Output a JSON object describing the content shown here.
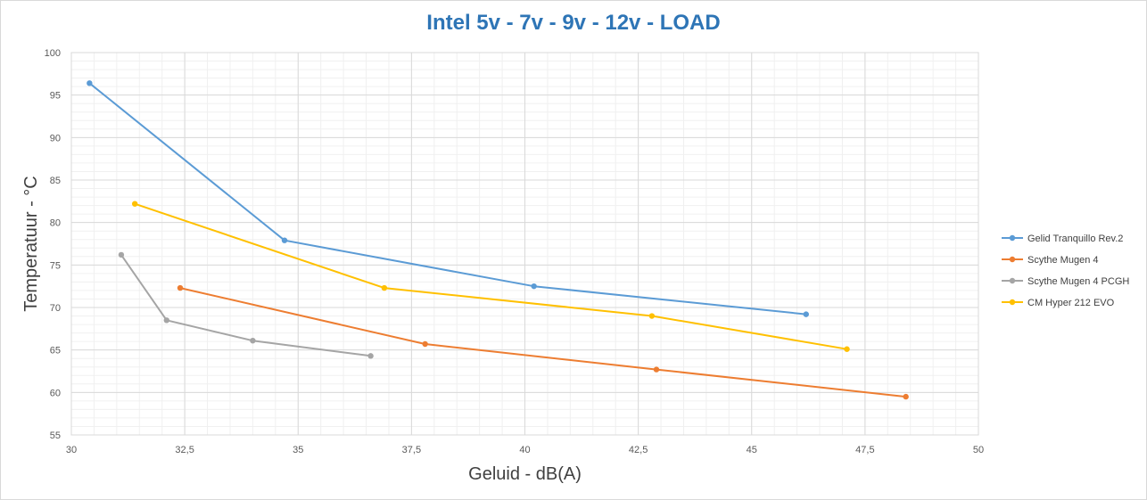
{
  "chart_data": {
    "type": "scatter",
    "title": "Intel 5v - 7v - 9v - 12v - LOAD",
    "xlabel": "Geluid - dB(A)",
    "ylabel": "Temperatuur - °C",
    "xlim": [
      30,
      50
    ],
    "ylim": [
      55,
      100
    ],
    "x_major_step": 2.5,
    "y_major_step": 5,
    "x_tick_labels": [
      "30",
      "32,5",
      "35",
      "37,5",
      "40",
      "42,5",
      "45",
      "47,5",
      "50"
    ],
    "y_tick_labels": [
      "55",
      "60",
      "65",
      "70",
      "75",
      "80",
      "85",
      "90",
      "95",
      "100"
    ],
    "grid": true,
    "minor_grid": true,
    "lines": true,
    "markers": true,
    "legend_position": "right",
    "series": [
      {
        "name": "Gelid Tranquillo Rev.2",
        "color": "#5b9bd5",
        "points": [
          [
            30.4,
            96.4
          ],
          [
            34.7,
            77.9
          ],
          [
            40.2,
            72.5
          ],
          [
            46.2,
            69.2
          ]
        ]
      },
      {
        "name": "Scythe Mugen 4",
        "color": "#ed7d31",
        "points": [
          [
            32.4,
            72.3
          ],
          [
            37.8,
            65.7
          ],
          [
            42.9,
            62.7
          ],
          [
            48.4,
            59.5
          ]
        ]
      },
      {
        "name": "Scythe Mugen 4 PCGH",
        "color": "#a5a5a5",
        "points": [
          [
            31.1,
            76.2
          ],
          [
            32.1,
            68.5
          ],
          [
            34.0,
            66.1
          ],
          [
            36.6,
            64.3
          ]
        ]
      },
      {
        "name": "CM Hyper 212 EVO",
        "color": "#ffc000",
        "points": [
          [
            31.4,
            82.2
          ],
          [
            36.9,
            72.3
          ],
          [
            42.8,
            69.0
          ],
          [
            47.1,
            65.1
          ]
        ]
      }
    ]
  }
}
